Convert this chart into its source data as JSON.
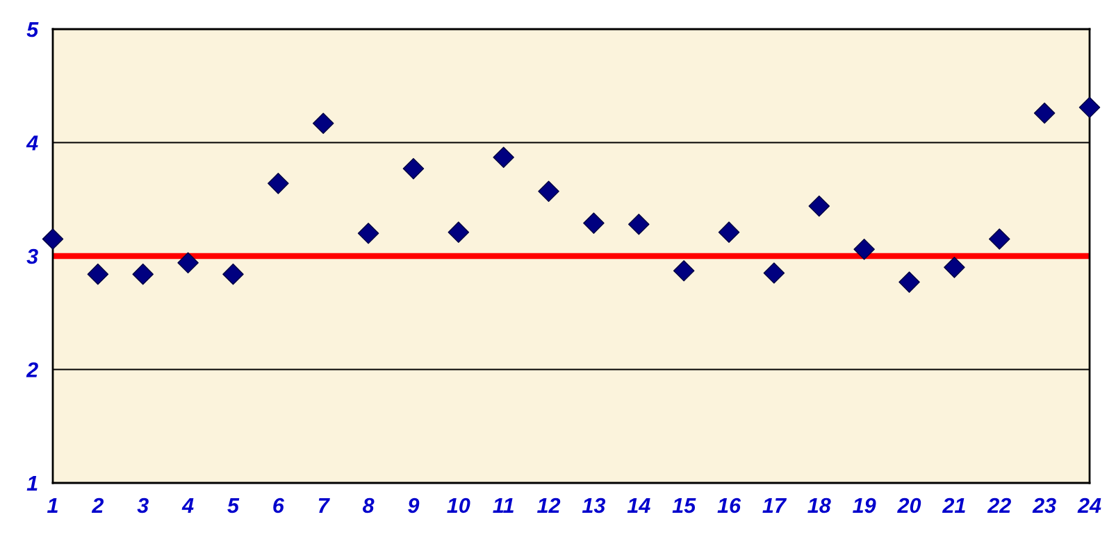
{
  "chart_data": {
    "type": "scatter",
    "x": [
      1,
      2,
      3,
      4,
      5,
      6,
      7,
      8,
      9,
      10,
      11,
      12,
      13,
      14,
      15,
      16,
      17,
      18,
      19,
      20,
      21,
      22,
      23,
      24
    ],
    "series": [
      {
        "color": "#000080",
        "values": [
          3.15,
          2.84,
          2.84,
          2.94,
          2.84,
          3.64,
          4.17,
          3.2,
          3.77,
          3.21,
          3.87,
          3.57,
          3.29,
          3.28,
          2.87,
          3.21,
          2.85,
          3.44,
          3.06,
          2.77,
          2.9,
          3.15,
          4.26,
          4.31
        ]
      }
    ],
    "xlim": [
      1,
      24
    ],
    "xticks": [
      1,
      2,
      3,
      4,
      5,
      6,
      7,
      8,
      9,
      10,
      11,
      12,
      13,
      14,
      15,
      16,
      17,
      18,
      19,
      20,
      21,
      22,
      23,
      24
    ],
    "ylim": [
      1,
      5
    ],
    "yticks": [
      1,
      2,
      3,
      4,
      5
    ],
    "grid": "y",
    "marker": "diamond",
    "ref_lines": [
      {
        "axis": "y",
        "value": 3,
        "color": "#ff0000"
      }
    ]
  }
}
